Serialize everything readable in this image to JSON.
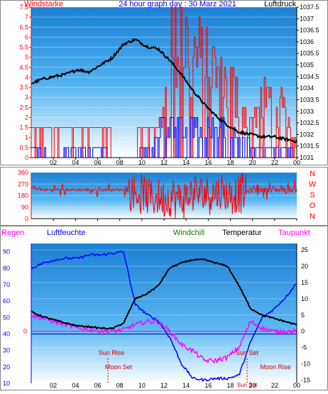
{
  "top": {
    "title": "24 hour graph day : 30 Marz 2021",
    "left_label": "Windstarke",
    "right_label": "Luftdruck",
    "wind_ticks": [
      "0",
      "0.5",
      "1",
      "1.5",
      "2",
      "2.5",
      "3",
      "3.5",
      "4",
      "4.5",
      "5",
      "5.5",
      "6",
      "6.5",
      "7",
      "7.5"
    ],
    "pressure_ticks": [
      "1031",
      "1031.5",
      "1032",
      "1032.5",
      "1033",
      "1033.5",
      "1034",
      "1034.5",
      "1035",
      "1035.5",
      "1036",
      "1036.5",
      "1037",
      "1037.5"
    ],
    "hour_labels": [
      "02",
      "04",
      "06",
      "08",
      "10",
      "12",
      "14",
      "16",
      "18",
      "20",
      "22",
      "00"
    ]
  },
  "middle": {
    "dir_ticks": [
      "0",
      "90",
      "180",
      "270",
      "360"
    ],
    "compass": [
      "N",
      "W",
      "S",
      "O",
      "N"
    ],
    "hour_labels": [
      "02",
      "04",
      "06",
      "08",
      "10",
      "12",
      "14",
      "16",
      "18",
      "20",
      "22",
      "00"
    ]
  },
  "bottom": {
    "labels": {
      "regen": "Regen",
      "luftfeuchte": "Luftfeuchte",
      "windchill": "Windchill",
      "temperatur": "Temperatur",
      "taupunkt": "Taupunkt"
    },
    "left_ticks": [
      "10",
      "20",
      "30",
      "40",
      "50",
      "60",
      "70",
      "80",
      "90"
    ],
    "right_ticks": [
      "-15",
      "-10",
      "-5",
      "0",
      "5",
      "10",
      "15",
      "20",
      "25"
    ],
    "zero_label": "0",
    "hour_labels": [
      "02",
      "04",
      "06",
      "08",
      "10",
      "12",
      "14",
      "16",
      "18",
      "20",
      "22",
      "00"
    ],
    "events": {
      "sun_rise": "Sun Rise",
      "moon_set": "Moon Set",
      "sun_set": "Sun Set",
      "moon_rise": "Moon Rise",
      "sun_set_overlap": "Sun Set"
    }
  },
  "colors": {
    "wind_gust": "#ff0000",
    "wind_avg": "#0000ff",
    "pressure": "#000000",
    "direction": "#ff0000",
    "humidity": "#0000ff",
    "temperature": "#000000",
    "dewpoint": "#ff00ff",
    "rain_label": "#ff00ff",
    "windchill_label": "#008000",
    "title": "#0000ff",
    "left_axis": "#ff0000",
    "events": "#cc0000"
  },
  "chart_data": [
    {
      "type": "line",
      "name": "wind-pressure",
      "x_range_hours": [
        0,
        24
      ],
      "wind_ylim": [
        0,
        7.5
      ],
      "pressure_ylim": [
        1031,
        1037.5
      ],
      "wind_gust_hourly": [
        1.5,
        1.5,
        1.5,
        1.5,
        1.5,
        1.5,
        1.5,
        0,
        0,
        0,
        1.5,
        1.5,
        7.5,
        7.5,
        6.5,
        5.5,
        5.5,
        4.5,
        3.5,
        2.5,
        3.5,
        3.5,
        2.5,
        1.5
      ],
      "wind_avg_hourly": [
        0.5,
        0.5,
        0,
        0.5,
        0.5,
        0.5,
        0.5,
        0,
        0,
        0,
        0.5,
        1.5,
        2,
        2,
        2,
        1.5,
        1.5,
        1.5,
        1,
        0.5,
        0.5,
        0.5,
        0.5,
        0
      ],
      "pressure_hourly": [
        1034.2,
        1034.4,
        1034.5,
        1034.6,
        1034.8,
        1034.7,
        1035.0,
        1035.3,
        1035.9,
        1036.1,
        1035.8,
        1035.7,
        1035.2,
        1034.6,
        1033.9,
        1033.3,
        1032.8,
        1032.4,
        1032.1,
        1032.0,
        1031.9,
        1031.9,
        1031.8,
        1031.7
      ]
    },
    {
      "type": "line",
      "name": "wind-direction",
      "x_range_hours": [
        0,
        24
      ],
      "ylim": [
        0,
        360
      ],
      "direction_hourly": [
        240,
        225,
        225,
        225,
        225,
        225,
        225,
        225,
        225,
        200,
        180,
        160,
        170,
        150,
        190,
        200,
        210,
        190,
        200,
        220,
        225,
        225,
        225,
        225
      ]
    },
    {
      "type": "line",
      "name": "humidity-temperature",
      "x_range_hours": [
        0,
        24
      ],
      "humidity_ylim": [
        10,
        95
      ],
      "temp_ylim": [
        -16,
        27
      ],
      "humidity_hourly": [
        80,
        83,
        85,
        86,
        86,
        88,
        88,
        89,
        90,
        58,
        52,
        48,
        38,
        22,
        13,
        12,
        13,
        13,
        15,
        35,
        50,
        55,
        62,
        71
      ],
      "temperature_hourly": [
        6,
        4.5,
        3.5,
        2.5,
        1.7,
        1.4,
        1.0,
        0.8,
        2.5,
        10,
        11.5,
        14,
        19.5,
        21,
        22,
        22,
        21,
        20,
        14,
        7,
        5,
        4,
        3,
        2
      ],
      "dewpoint_hourly": [
        5,
        4,
        3,
        2,
        1,
        0.5,
        0.2,
        0,
        0.5,
        2,
        3,
        3,
        0,
        -4,
        -6,
        -9,
        -9,
        -8,
        -5,
        3,
        1,
        0,
        0,
        0
      ]
    }
  ]
}
